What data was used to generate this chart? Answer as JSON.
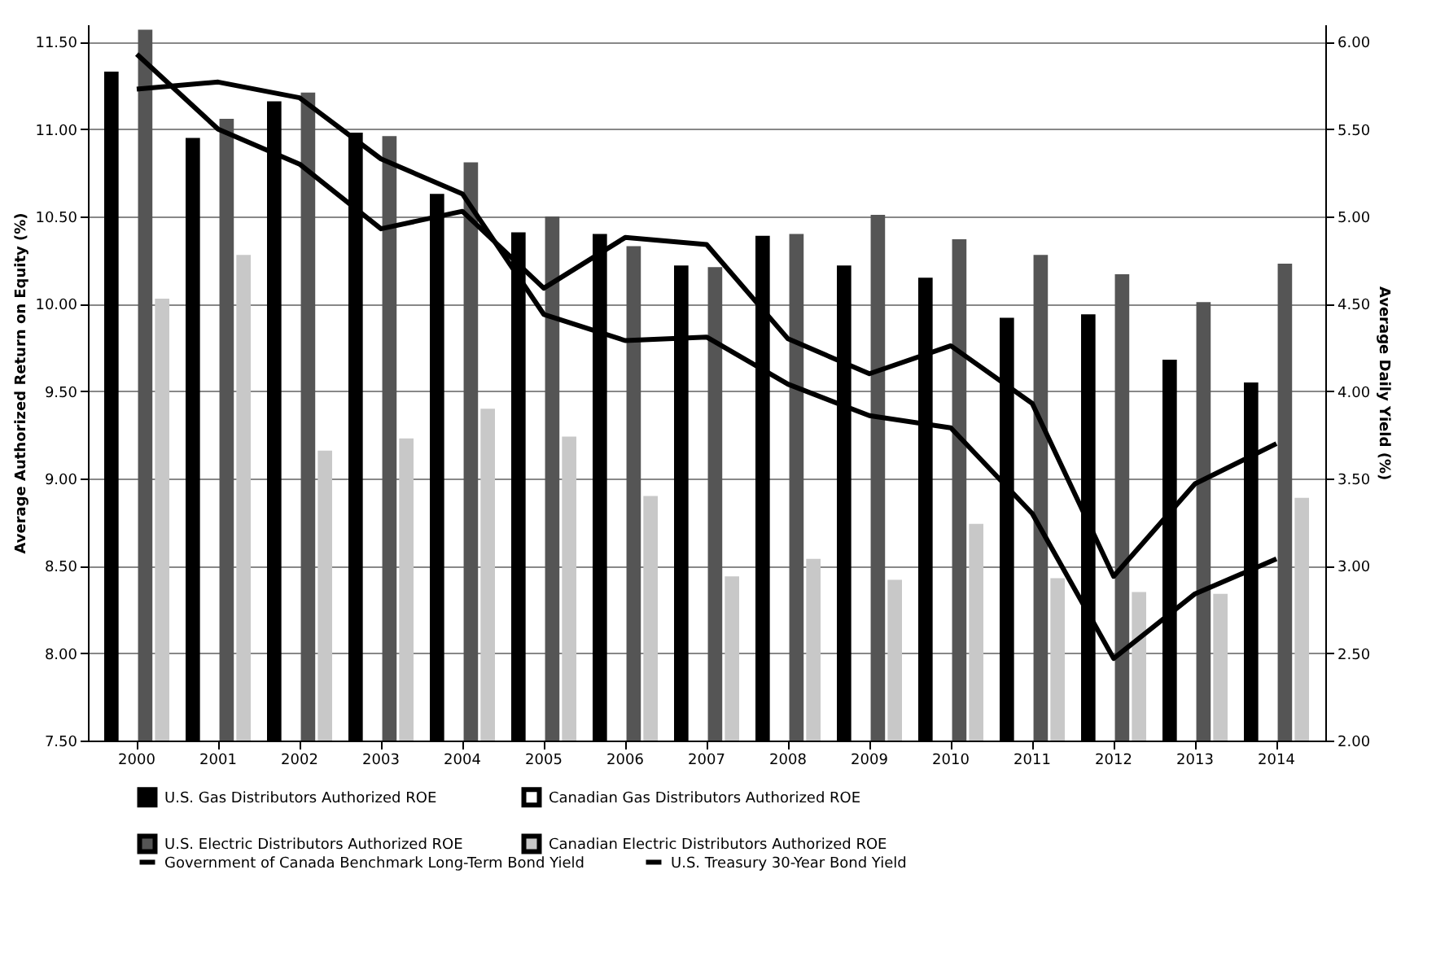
{
  "chart_data": {
    "type": "bar",
    "ylabel": "Average Authorized Return on Equity (%)",
    "y2label": "Average Daily Yield (%)",
    "categories": [
      "2000",
      "2001",
      "2002",
      "2003",
      "2004",
      "2005",
      "2006",
      "2007",
      "2008",
      "2009",
      "2010",
      "2011",
      "2012",
      "2013",
      "2014"
    ],
    "series": [
      {
        "name": "U.S. Gas Distributors Authorized ROE",
        "color": "#000000",
        "values": [
          11.33,
          10.95,
          11.16,
          10.98,
          10.63,
          10.41,
          10.4,
          10.22,
          10.39,
          10.22,
          10.15,
          9.92,
          9.94,
          9.68,
          9.55
        ]
      },
      {
        "name": "Canadian Gas Distributors Authorized ROE",
        "color": "#ffffff",
        "values": [
          null,
          null,
          null,
          null,
          null,
          null,
          null,
          null,
          null,
          null,
          null,
          null,
          null,
          null,
          null
        ]
      },
      {
        "name": "U.S. Electric Distributors Authorized ROE",
        "color": "#555555",
        "values": [
          11.57,
          11.06,
          11.21,
          10.96,
          10.81,
          10.5,
          10.33,
          10.21,
          10.4,
          10.51,
          10.37,
          10.28,
          10.17,
          10.01,
          10.23
        ]
      },
      {
        "name": "Canadian Electric Distributors Authorized ROE",
        "color": "#c8c8c8",
        "values": [
          10.03,
          10.28,
          9.16,
          9.23,
          9.4,
          9.24,
          8.9,
          8.44,
          8.54,
          8.42,
          8.74,
          8.43,
          8.35,
          8.34,
          8.89
        ]
      },
      {
        "name": "Government of Canada Benchmark Long-Term Bond Yield",
        "type": "line",
        "axis": "y2",
        "color": "#000000",
        "values": [
          5.73,
          5.77,
          5.68,
          5.33,
          5.13,
          4.44,
          4.29,
          4.31,
          4.04,
          3.86,
          3.79,
          3.3,
          2.47,
          2.84,
          3.04
        ]
      },
      {
        "name": "U.S. Treasury 30-Year Bond Yield",
        "type": "line",
        "axis": "y2",
        "color": "#000000",
        "values": [
          5.93,
          5.5,
          5.3,
          4.93,
          5.03,
          4.59,
          4.88,
          4.84,
          4.3,
          4.1,
          4.26,
          3.93,
          2.94,
          3.47,
          3.7
        ]
      }
    ],
    "ylim": [
      7.5,
      11.6
    ],
    "yticks": [
      {
        "value": 7.5,
        "label": "7.50"
      },
      {
        "value": 8,
        "label": "8.00"
      },
      {
        "value": 8.5,
        "label": "8.50"
      },
      {
        "value": 9,
        "label": "9.00"
      },
      {
        "value": 9.5,
        "label": "9.50"
      },
      {
        "value": 10,
        "label": "10.00"
      },
      {
        "value": 10.5,
        "label": "10.50"
      },
      {
        "value": 11,
        "label": "11.00"
      },
      {
        "value": 11.5,
        "label": "11.50"
      }
    ],
    "y2lim": [
      2,
      6.1
    ],
    "y2ticks": [
      {
        "value": 2,
        "label": "2.00"
      },
      {
        "value": 2.5,
        "label": "2.50"
      },
      {
        "value": 3,
        "label": "3.00"
      },
      {
        "value": 3.5,
        "label": "3.50"
      },
      {
        "value": 4,
        "label": "4.00"
      },
      {
        "value": 4.5,
        "label": "4.50"
      },
      {
        "value": 5,
        "label": "5.00"
      },
      {
        "value": 5.5,
        "label": "5.50"
      },
      {
        "value": 6,
        "label": "6.00"
      }
    ],
    "grid": "y",
    "legend": "bottom"
  }
}
